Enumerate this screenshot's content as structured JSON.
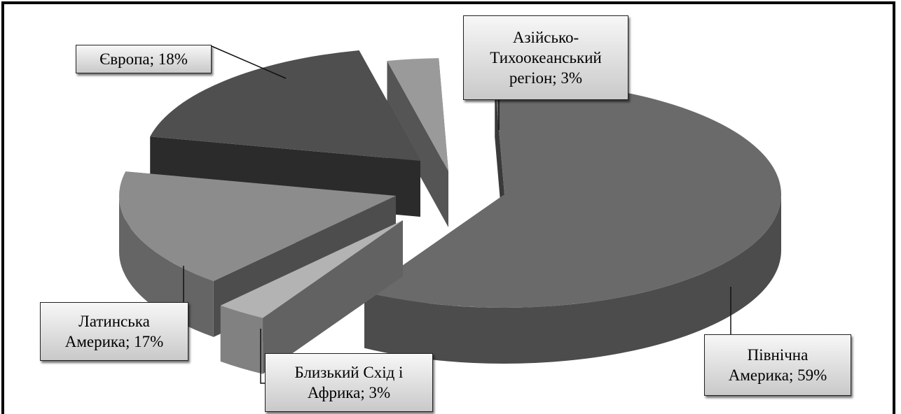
{
  "colors": {
    "frame": "#000000",
    "label_bg_top": "#f7f7f7",
    "label_bg_bottom": "#c9c9c9"
  },
  "chart_data": {
    "type": "pie",
    "style": "3d-exploded",
    "title": "",
    "unit": "%",
    "slices": [
      {
        "label": "Північна Америка",
        "value": 59,
        "data_label": "Північна\nАмерика; 59%",
        "color": "#6a6a6a"
      },
      {
        "label": "Близький Схід і Африка",
        "value": 3,
        "data_label": "Близький Схід і\nАфрика; 3%",
        "color": "#b3b3b3"
      },
      {
        "label": "Латинська Америка",
        "value": 17,
        "data_label": "Латинська\nАмерика; 17%",
        "color": "#8c8c8c"
      },
      {
        "label": "Європа",
        "value": 18,
        "data_label": "Європа; 18%",
        "color": "#4f4f4f"
      },
      {
        "label": "Азійсько-Тихоокеанський регіон",
        "value": 3,
        "data_label": "Азійсько-\nТихоокеанський\nрегіон; 3%",
        "color": "#9a9a9a"
      }
    ]
  }
}
